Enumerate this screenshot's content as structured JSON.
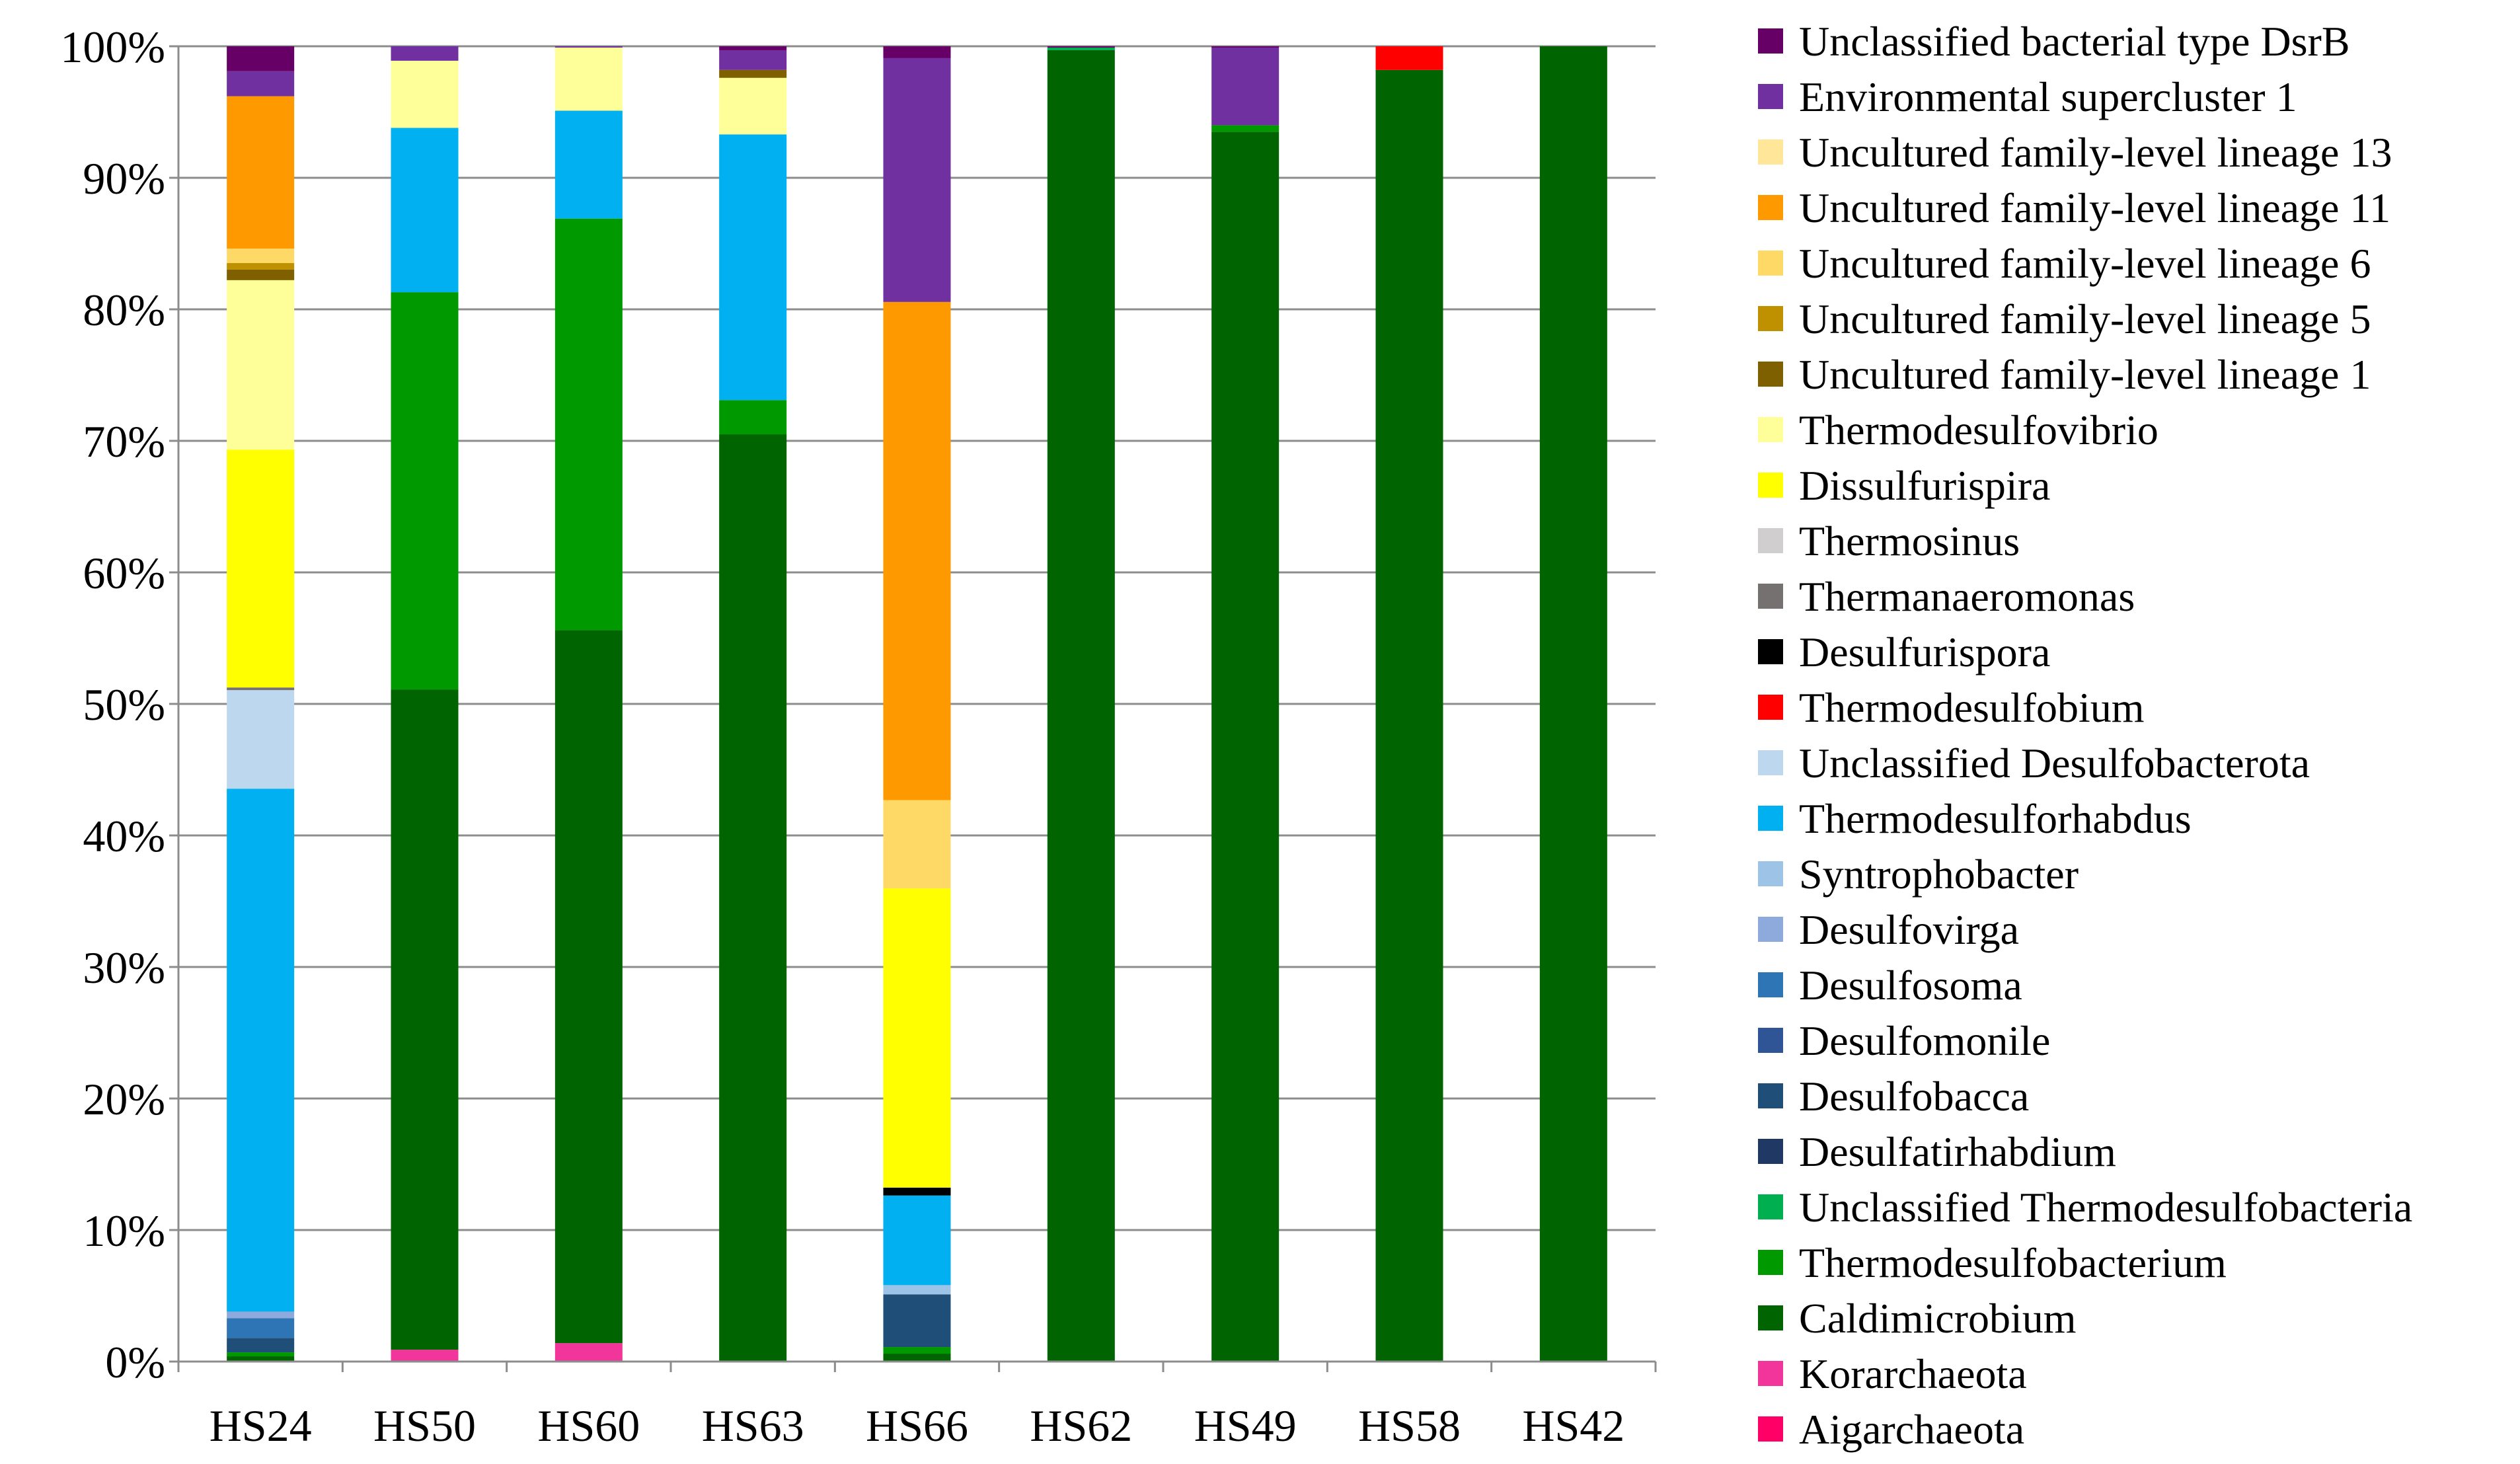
{
  "chart_data": {
    "type": "bar",
    "stacked": true,
    "percent": true,
    "title": "",
    "xlabel": "",
    "ylabel": "",
    "ylim": [
      0,
      100
    ],
    "grid": true,
    "legend_position": "right",
    "yticks": [
      "0%",
      "10%",
      "20%",
      "30%",
      "40%",
      "50%",
      "60%",
      "70%",
      "80%",
      "90%",
      "100%"
    ],
    "categories": [
      "HS24",
      "HS50",
      "HS60",
      "HS63",
      "HS66",
      "HS62",
      "HS49",
      "HS58",
      "HS42"
    ],
    "series": [
      {
        "name": "Aigarchaeota",
        "color": "#FF0066",
        "values": [
          0,
          0,
          0,
          0,
          0,
          0,
          0,
          0,
          0
        ]
      },
      {
        "name": "Korarchaeota",
        "color": "#F2359B",
        "values": [
          0,
          0.9,
          1.4,
          0,
          0,
          0,
          0,
          0,
          0
        ]
      },
      {
        "name": "Caldimicrobium",
        "color": "#006400",
        "values": [
          0.4,
          50.2,
          54.2,
          70.5,
          0.6,
          99.7,
          93.5,
          98.2,
          100
        ]
      },
      {
        "name": "Thermodesulfobacterium",
        "color": "#009900",
        "values": [
          0.3,
          30.2,
          31.3,
          2.6,
          0.5,
          0,
          0.5,
          0,
          0
        ]
      },
      {
        "name": "Unclassified Thermodesulfobacteria",
        "color": "#00B050",
        "values": [
          0,
          0,
          0,
          0,
          0,
          0.2,
          0,
          0,
          0
        ]
      },
      {
        "name": "Desulfatirhabdium",
        "color": "#1F3864",
        "values": [
          0,
          0,
          0,
          0,
          0,
          0,
          0,
          0,
          0
        ]
      },
      {
        "name": "Desulfobacca",
        "color": "#1F4E79",
        "values": [
          1.1,
          0,
          0,
          0,
          4.0,
          0,
          0,
          0,
          0
        ]
      },
      {
        "name": "Desulfomonile",
        "color": "#2F5597",
        "values": [
          0,
          0,
          0,
          0,
          0,
          0,
          0,
          0,
          0
        ]
      },
      {
        "name": "Desulfosoma",
        "color": "#2E75B6",
        "values": [
          1.5,
          0,
          0,
          0,
          0,
          0,
          0,
          0,
          0
        ]
      },
      {
        "name": "Desulfovirga",
        "color": "#8EA9DB",
        "values": [
          0.5,
          0,
          0,
          0,
          0,
          0,
          0,
          0,
          0
        ]
      },
      {
        "name": "Syntrophobacter",
        "color": "#9DC3E6",
        "values": [
          0,
          0,
          0,
          0,
          0.7,
          0,
          0,
          0,
          0
        ]
      },
      {
        "name": "Thermodesulforhabdus",
        "color": "#00B0F0",
        "values": [
          39.8,
          12.5,
          8.2,
          20.2,
          6.8,
          0,
          0,
          0,
          0
        ]
      },
      {
        "name": "Unclassified Desulfobacterota",
        "color": "#BDD7EE",
        "values": [
          7.5,
          0,
          0,
          0,
          0,
          0,
          0,
          0,
          0
        ]
      },
      {
        "name": "Thermodesulfobium",
        "color": "#FF0000",
        "values": [
          0,
          0,
          0,
          0,
          0,
          0,
          0,
          1.8,
          0
        ]
      },
      {
        "name": "Desulfurispora",
        "color": "#000000",
        "values": [
          0,
          0,
          0,
          0,
          0.6,
          0,
          0,
          0,
          0
        ]
      },
      {
        "name": "Thermanaeromonas",
        "color": "#767171",
        "values": [
          0.2,
          0,
          0,
          0,
          0,
          0,
          0,
          0,
          0
        ]
      },
      {
        "name": "Thermosinus",
        "color": "#D0CECE",
        "values": [
          0,
          0,
          0,
          0,
          0,
          0,
          0,
          0,
          0
        ]
      },
      {
        "name": "Dissulfurispira",
        "color": "#FFFF00",
        "values": [
          18.1,
          0,
          0,
          0,
          22.7,
          0,
          0,
          0,
          0
        ]
      },
      {
        "name": "Thermodesulfovibrio",
        "color": "#FFFF99",
        "values": [
          12.9,
          5.1,
          4.8,
          4.3,
          0,
          0,
          0,
          0,
          0
        ]
      },
      {
        "name": "Uncultured family-level lineage 1",
        "color": "#7F6000",
        "values": [
          0.8,
          0,
          0,
          0.6,
          0,
          0,
          0,
          0,
          0
        ]
      },
      {
        "name": "Uncultured family-level lineage 5",
        "color": "#BF9000",
        "values": [
          0.5,
          0,
          0,
          0,
          0,
          0,
          0,
          0,
          0
        ]
      },
      {
        "name": "Uncultured family-level lineage 6",
        "color": "#FFD966",
        "values": [
          1.1,
          0,
          0,
          0,
          6.7,
          0,
          0,
          0,
          0
        ]
      },
      {
        "name": "Uncultured family-level lineage 11",
        "color": "#FF9900",
        "values": [
          11.6,
          0,
          0,
          0,
          37.8,
          0,
          0,
          0,
          0
        ]
      },
      {
        "name": "Uncultured family-level lineage 13",
        "color": "#FFE699",
        "values": [
          0,
          0,
          0,
          0,
          0,
          0,
          0,
          0,
          0
        ]
      },
      {
        "name": "Environmental supercluster 1",
        "color": "#7030A0",
        "values": [
          1.9,
          1.1,
          0.1,
          1.5,
          18.5,
          0,
          5.9,
          0,
          0
        ]
      },
      {
        "name": "Unclassified bacterial type DsrB",
        "color": "#660066",
        "values": [
          1.9,
          0,
          0,
          0.3,
          0.9,
          0.1,
          0.1,
          0,
          0
        ]
      }
    ]
  }
}
